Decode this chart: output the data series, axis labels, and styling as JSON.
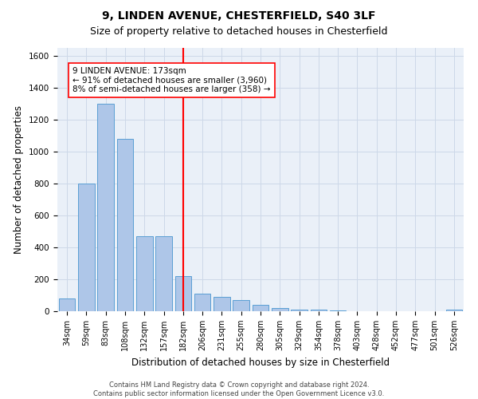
{
  "title_line1": "9, LINDEN AVENUE, CHESTERFIELD, S40 3LF",
  "title_line2": "Size of property relative to detached houses in Chesterfield",
  "xlabel": "Distribution of detached houses by size in Chesterfield",
  "ylabel": "Number of detached properties",
  "categories": [
    "34sqm",
    "59sqm",
    "83sqm",
    "108sqm",
    "132sqm",
    "157sqm",
    "182sqm",
    "206sqm",
    "231sqm",
    "255sqm",
    "280sqm",
    "305sqm",
    "329sqm",
    "354sqm",
    "378sqm",
    "403sqm",
    "428sqm",
    "452sqm",
    "477sqm",
    "501sqm",
    "526sqm"
  ],
  "values": [
    80,
    800,
    1300,
    1080,
    470,
    470,
    220,
    110,
    90,
    70,
    40,
    20,
    8,
    8,
    5,
    2,
    0,
    0,
    0,
    0,
    8
  ],
  "bar_color": "#aec6e8",
  "bar_edge_color": "#5a9fd4",
  "grid_color": "#cdd8e8",
  "background_color": "#eaf0f8",
  "vline_color": "red",
  "annotation_text": "9 LINDEN AVENUE: 173sqm\n← 91% of detached houses are smaller (3,960)\n8% of semi-detached houses are larger (358) →",
  "annotation_box_color": "white",
  "annotation_box_edge": "red",
  "ylim": [
    0,
    1650
  ],
  "yticks": [
    0,
    200,
    400,
    600,
    800,
    1000,
    1200,
    1400,
    1600
  ],
  "footer_line1": "Contains HM Land Registry data © Crown copyright and database right 2024.",
  "footer_line2": "Contains public sector information licensed under the Open Government Licence v3.0.",
  "title_fontsize": 10,
  "subtitle_fontsize": 9,
  "tick_fontsize": 7.5,
  "label_fontsize": 8.5
}
